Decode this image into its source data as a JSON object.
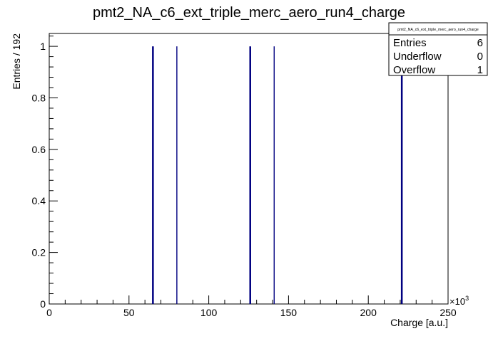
{
  "chart_data": {
    "type": "bar",
    "title": "pmt2_NA_c6_ext_triple_merc_aero_run4_charge",
    "xlabel": "Charge [a.u.]",
    "ylabel": "Entries / 192",
    "xlim": [
      0,
      250000
    ],
    "ylim": [
      0,
      1.05
    ],
    "x_exponent_label": "×10",
    "x_exponent_power": "3",
    "x_ticks": [
      0,
      50000,
      100000,
      150000,
      200000,
      250000
    ],
    "x_tick_labels": [
      "0",
      "50",
      "100",
      "150",
      "200",
      "250"
    ],
    "y_ticks": [
      0,
      0.2,
      0.4,
      0.6,
      0.8,
      1.0
    ],
    "y_tick_labels": [
      "0",
      "0.2",
      "0.4",
      "0.6",
      "0.8",
      "1"
    ],
    "x": [
      65000,
      80000,
      126000,
      141000,
      221000
    ],
    "values": [
      1,
      1,
      1,
      1,
      1
    ],
    "bar_color": "#000080",
    "grid": false,
    "stats_box": {
      "position": "top-right",
      "title": "pmt2_NA_c6_ext_triple_merc_aero_run4_charge",
      "rows": [
        {
          "label": "Entries",
          "value": "6"
        },
        {
          "label": "Underflow",
          "value": "0"
        },
        {
          "label": "Overflow",
          "value": "1"
        }
      ]
    }
  }
}
